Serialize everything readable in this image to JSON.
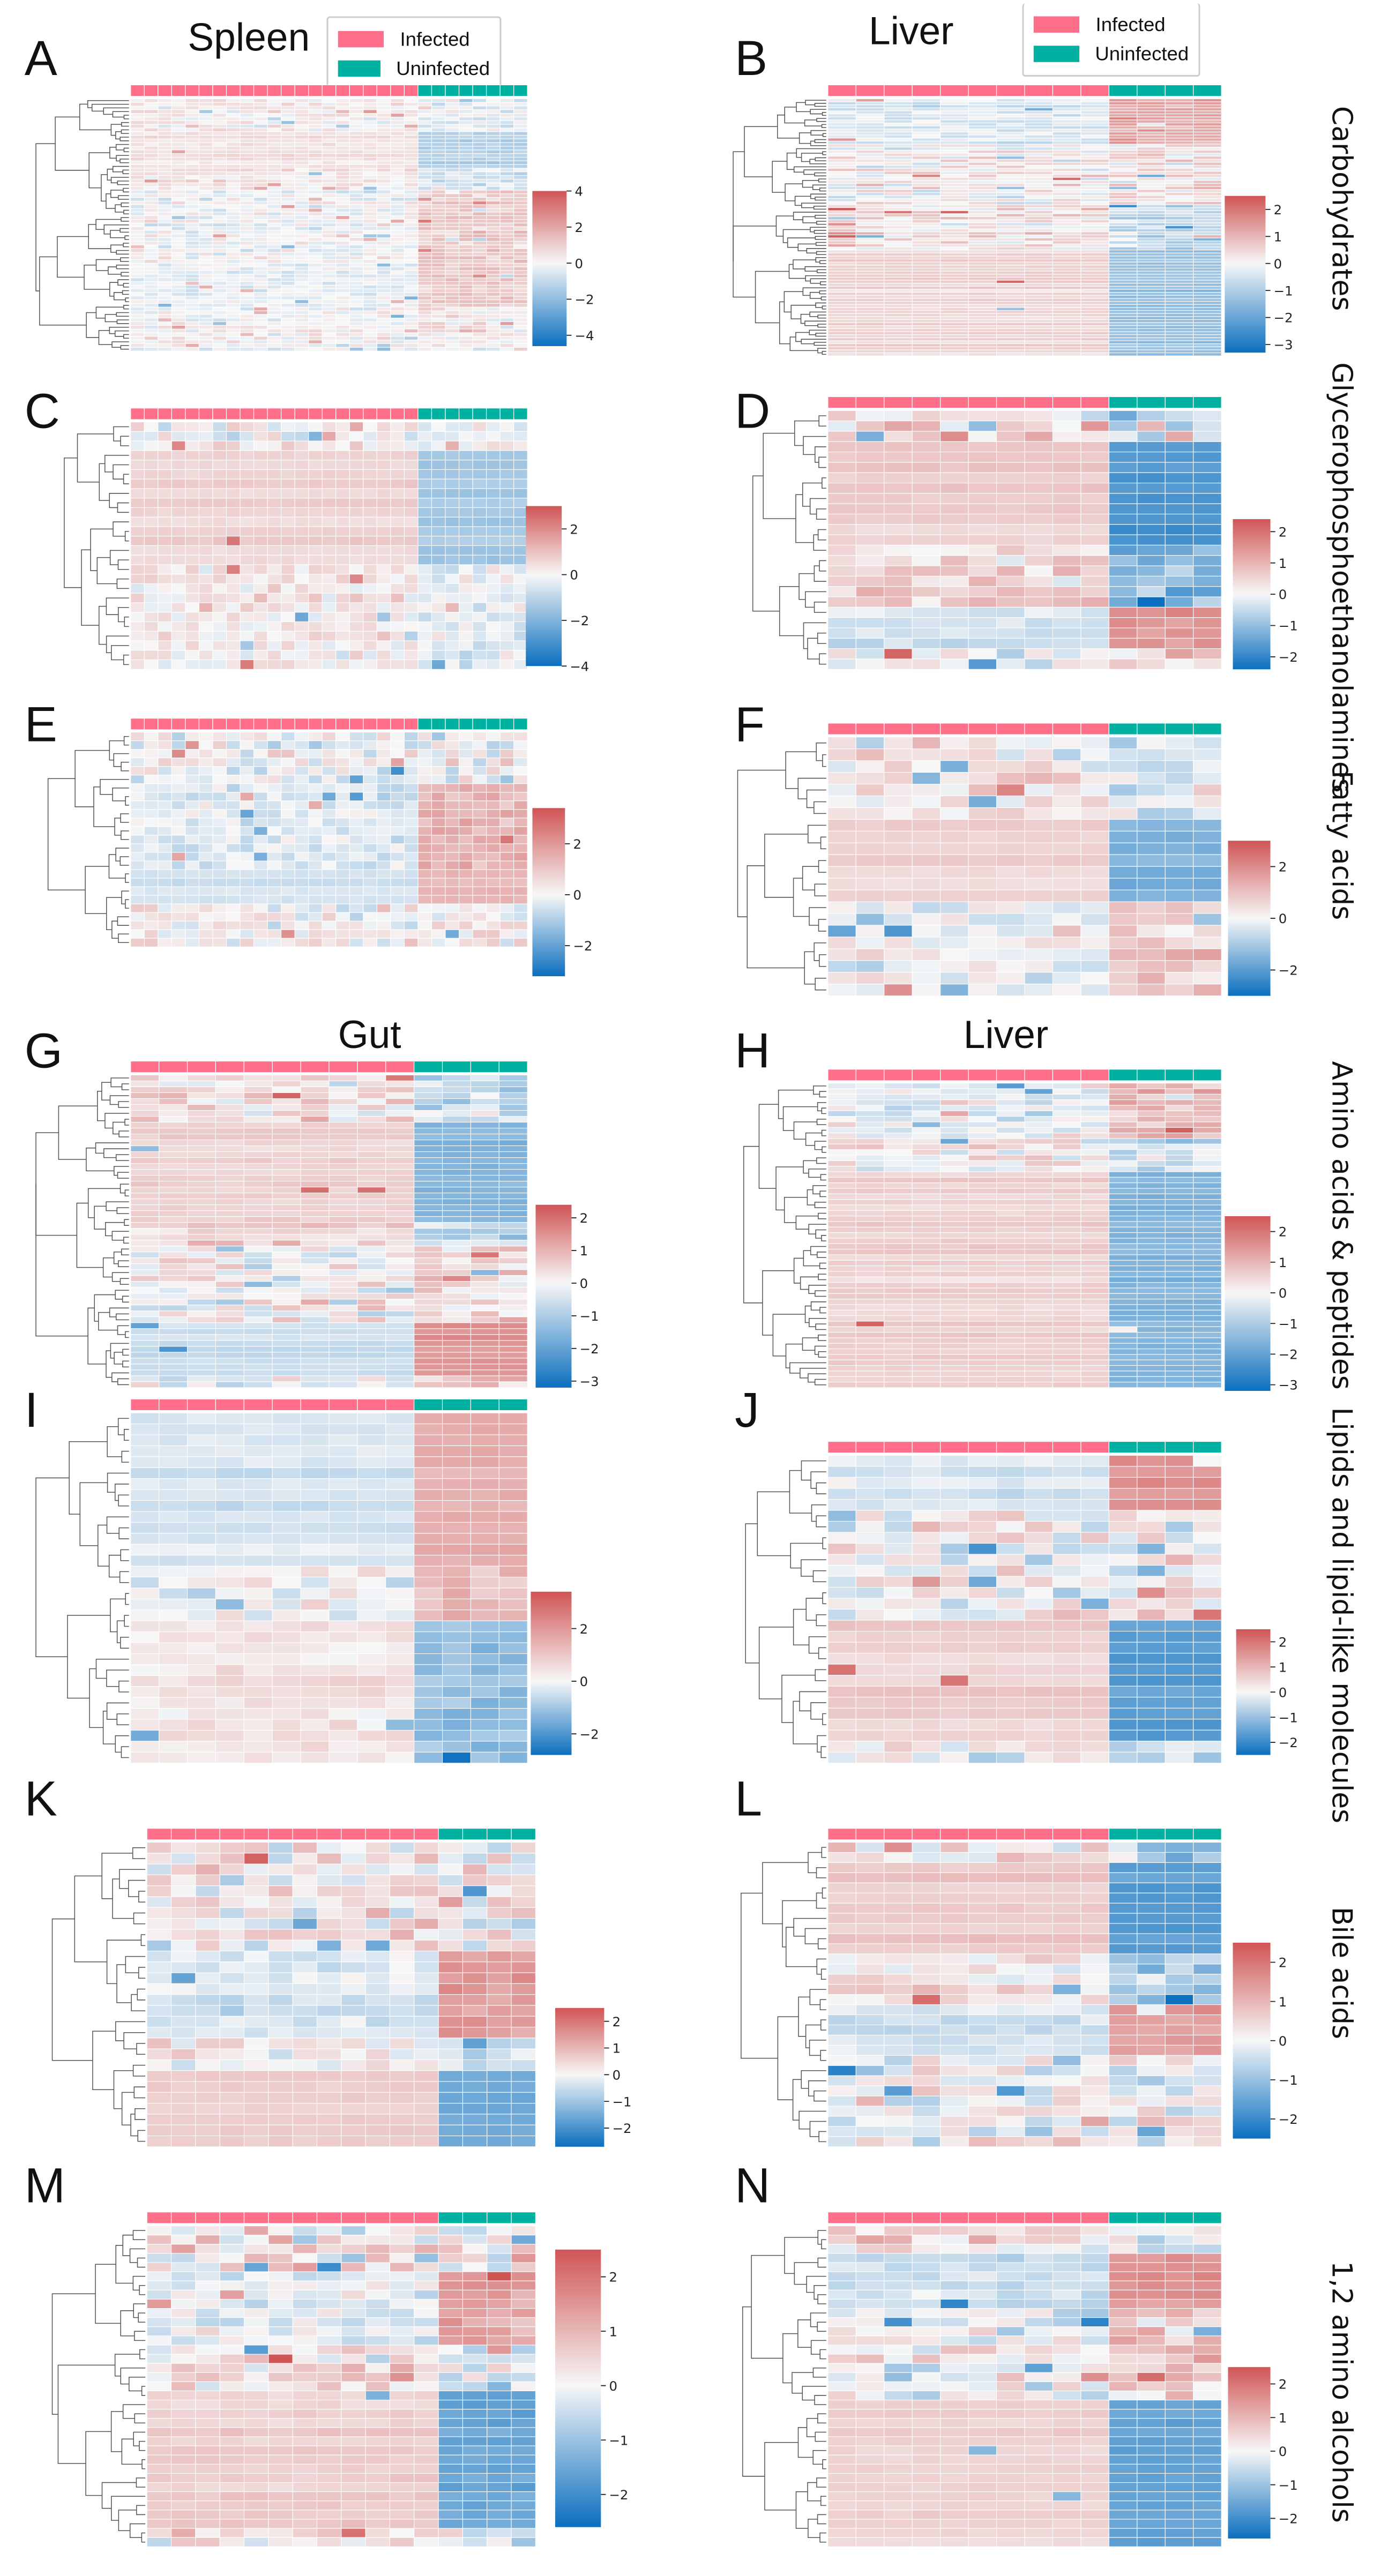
{
  "legend": {
    "infected": "Infected",
    "uninfected": "Uninfected",
    "infected_color": "#ff6f8a",
    "uninfected_color": "#00b0a0"
  },
  "titles": {
    "spleen": "Spleen",
    "liver_top": "Liver",
    "gut": "Gut",
    "liver_mid": "Liver"
  },
  "side_labels": [
    "Carbohydrates",
    "Glycerophosphoethanolamines",
    "Fatty acids",
    "Amino acids & peptides",
    "Lipids and lipid-like molecules",
    "Bile acids",
    "1,2 amino alcohols"
  ],
  "colormap": {
    "low": "#0b6fbf",
    "mid": "#f7f7f7",
    "high": "#d05555"
  },
  "chart_data": [
    {
      "panel": "A",
      "type": "heatmap",
      "tissue": "Spleen",
      "category": "Carbohydrates",
      "n_infected": 21,
      "n_uninfected": 8,
      "vmin": -4.6,
      "vmax": 4,
      "ticks": [
        4,
        2,
        0,
        -2,
        -4
      ],
      "row_blocks": [
        {
          "rows": 9,
          "infected": 0.2,
          "uninfected": -0.2,
          "spread": 0.8
        },
        {
          "rows": 10,
          "infected": 0.45,
          "uninfected": -1.1,
          "spread": 0.3
        },
        {
          "rows": 6,
          "infected": 0.3,
          "uninfected": -0.6,
          "spread": 0.7
        },
        {
          "rows": 20,
          "infected": -0.1,
          "uninfected": 0.9,
          "spread": 0.8
        },
        {
          "rows": 12,
          "infected": -0.2,
          "uninfected": 1.0,
          "spread": 0.6
        },
        {
          "rows": 12,
          "infected": 0.0,
          "uninfected": 0.3,
          "spread": 0.9
        }
      ]
    },
    {
      "panel": "B",
      "type": "heatmap",
      "tissue": "Liver",
      "category": "Carbohydrates",
      "n_infected": 10,
      "n_uninfected": 4,
      "vmin": -3.3,
      "vmax": 2.5,
      "ticks": [
        2,
        1,
        0,
        -1,
        -2,
        -3
      ],
      "row_blocks": [
        {
          "rows": 15,
          "infected": -0.3,
          "uninfected": 1.1,
          "spread": 0.5
        },
        {
          "rows": 20,
          "infected": 0.1,
          "uninfected": 0.3,
          "spread": 0.9
        },
        {
          "rows": 15,
          "infected": 0.3,
          "uninfected": -0.6,
          "spread": 0.8
        },
        {
          "rows": 35,
          "infected": 0.45,
          "uninfected": -1.2,
          "spread": 0.1
        }
      ]
    },
    {
      "panel": "C",
      "type": "heatmap",
      "tissue": "Spleen",
      "category": "Glycerophosphoethanolamines",
      "n_infected": 21,
      "n_uninfected": 8,
      "vmin": -4,
      "vmax": 3,
      "ticks": [
        2,
        0,
        -2,
        -4
      ],
      "row_blocks": [
        {
          "rows": 3,
          "infected": 0.1,
          "uninfected": -0.2,
          "spread": 1.0
        },
        {
          "rows": 12,
          "infected": 0.6,
          "uninfected": -1.2,
          "spread": 0.1
        },
        {
          "rows": 11,
          "infected": 0.2,
          "uninfected": -0.3,
          "spread": 0.8
        }
      ]
    },
    {
      "panel": "D",
      "type": "heatmap",
      "tissue": "Liver",
      "category": "Glycerophosphoethanolamines",
      "n_infected": 10,
      "n_uninfected": 4,
      "vmin": -2.4,
      "vmax": 2.4,
      "ticks": [
        2,
        1,
        0,
        -1,
        -2
      ],
      "row_blocks": [
        {
          "rows": 3,
          "infected": 0.4,
          "uninfected": -0.6,
          "spread": 1.0
        },
        {
          "rows": 10,
          "infected": 0.6,
          "uninfected": -1.6,
          "spread": 0.1
        },
        {
          "rows": 6,
          "infected": 0.5,
          "uninfected": -1.0,
          "spread": 0.8
        },
        {
          "rows": 4,
          "infected": -0.4,
          "uninfected": 1.3,
          "spread": 0.3
        },
        {
          "rows": 2,
          "infected": 0.0,
          "uninfected": 0.5,
          "spread": 1.0
        }
      ]
    },
    {
      "panel": "E",
      "type": "heatmap",
      "tissue": "Spleen",
      "category": "Fatty acids",
      "n_infected": 21,
      "n_uninfected": 8,
      "vmin": -3.2,
      "vmax": 3.4,
      "ticks": [
        2,
        0,
        -2
      ],
      "row_blocks": [
        {
          "rows": 6,
          "infected": 0.0,
          "uninfected": 0.0,
          "spread": 1.1
        },
        {
          "rows": 10,
          "infected": -0.3,
          "uninfected": 1.3,
          "spread": 0.6
        },
        {
          "rows": 4,
          "infected": -0.4,
          "uninfected": 1.2,
          "spread": 0.1
        },
        {
          "rows": 5,
          "infected": 0.1,
          "uninfected": 0.1,
          "spread": 1.0
        }
      ]
    },
    {
      "panel": "F",
      "type": "heatmap",
      "tissue": "Liver",
      "category": "Fatty acids",
      "n_infected": 10,
      "n_uninfected": 4,
      "vmin": -3,
      "vmax": 3,
      "ticks": [
        2,
        0,
        -2
      ],
      "row_blocks": [
        {
          "rows": 7,
          "infected": 0.3,
          "uninfected": -0.3,
          "spread": 0.9
        },
        {
          "rows": 7,
          "infected": 0.6,
          "uninfected": -1.4,
          "spread": 0.1
        },
        {
          "rows": 8,
          "infected": -0.1,
          "uninfected": 0.7,
          "spread": 0.9
        }
      ]
    },
    {
      "panel": "G",
      "type": "heatmap",
      "tissue": "Gut",
      "category": "Amino acids & peptides",
      "n_infected": 10,
      "n_uninfected": 4,
      "vmin": -3.2,
      "vmax": 2.4,
      "ticks": [
        2,
        1,
        0,
        -1,
        -2,
        -3
      ],
      "row_blocks": [
        {
          "rows": 8,
          "infected": 0.2,
          "uninfected": -0.5,
          "spread": 0.9
        },
        {
          "rows": 17,
          "infected": 0.5,
          "uninfected": -1.4,
          "spread": 0.15
        },
        {
          "rows": 4,
          "infected": 0.5,
          "uninfected": -0.8,
          "spread": 0.6
        },
        {
          "rows": 13,
          "infected": 0.0,
          "uninfected": 0.4,
          "spread": 1.0
        },
        {
          "rows": 9,
          "infected": -0.5,
          "uninfected": 1.4,
          "spread": 0.1
        },
        {
          "rows": 2,
          "infected": -0.3,
          "uninfected": 0.8,
          "spread": 1.0
        }
      ]
    },
    {
      "panel": "H",
      "type": "heatmap",
      "tissue": "Liver",
      "category": "Amino acids & peptides",
      "n_infected": 10,
      "n_uninfected": 4,
      "vmin": -3.2,
      "vmax": 2.5,
      "ticks": [
        2,
        1,
        0,
        -1,
        -2,
        -3
      ],
      "row_blocks": [
        {
          "rows": 10,
          "infected": -0.2,
          "uninfected": 0.8,
          "spread": 0.8
        },
        {
          "rows": 6,
          "infected": 0.2,
          "uninfected": -0.4,
          "spread": 0.9
        },
        {
          "rows": 39,
          "infected": 0.45,
          "uninfected": -1.5,
          "spread": 0.1
        }
      ]
    },
    {
      "panel": "I",
      "type": "heatmap",
      "tissue": "Gut",
      "category": "Lipids and lipid-like molecules",
      "n_infected": 10,
      "n_uninfected": 4,
      "vmin": -2.8,
      "vmax": 3.4,
      "ticks": [
        2,
        0,
        -2
      ],
      "row_blocks": [
        {
          "rows": 14,
          "infected": -0.3,
          "uninfected": 1.4,
          "spread": 0.15
        },
        {
          "rows": 5,
          "infected": -0.1,
          "uninfected": 1.0,
          "spread": 0.8
        },
        {
          "rows": 13,
          "infected": 0.3,
          "uninfected": -1.1,
          "spread": 0.4
        }
      ]
    },
    {
      "panel": "J",
      "type": "heatmap",
      "tissue": "Liver",
      "category": "Lipids and lipid-like molecules",
      "n_infected": 10,
      "n_uninfected": 4,
      "vmin": -2.5,
      "vmax": 2.5,
      "ticks": [
        2,
        1,
        0,
        -1,
        -2
      ],
      "row_blocks": [
        {
          "rows": 5,
          "infected": -0.3,
          "uninfected": 1.4,
          "spread": 0.2
        },
        {
          "rows": 10,
          "infected": 0.1,
          "uninfected": 0.2,
          "spread": 1.1
        },
        {
          "rows": 11,
          "infected": 0.5,
          "uninfected": -1.6,
          "spread": 0.1
        },
        {
          "rows": 2,
          "infected": 0.2,
          "uninfected": -0.5,
          "spread": 0.9
        }
      ]
    },
    {
      "panel": "K",
      "type": "heatmap",
      "tissue": "Gut",
      "category": "Bile acids",
      "n_infected": 12,
      "n_uninfected": 4,
      "vmin": -2.7,
      "vmax": 2.5,
      "ticks": [
        2,
        1,
        0,
        -1,
        -2
      ],
      "row_blocks": [
        {
          "rows": 10,
          "infected": 0.2,
          "uninfected": 0.2,
          "spread": 1.1
        },
        {
          "rows": 8,
          "infected": -0.3,
          "uninfected": 1.3,
          "spread": 0.4
        },
        {
          "rows": 3,
          "infected": 0.2,
          "uninfected": -0.4,
          "spread": 0.8
        },
        {
          "rows": 7,
          "infected": 0.5,
          "uninfected": -1.5,
          "spread": 0.1
        }
      ]
    },
    {
      "panel": "L",
      "type": "heatmap",
      "tissue": "Liver",
      "category": "Bile acids",
      "n_infected": 10,
      "n_uninfected": 4,
      "vmin": -2.5,
      "vmax": 2.5,
      "ticks": [
        2,
        1,
        0,
        -1,
        -2
      ],
      "row_blocks": [
        {
          "rows": 2,
          "infected": 0.3,
          "uninfected": -1.0,
          "spread": 1.0
        },
        {
          "rows": 9,
          "infected": 0.6,
          "uninfected": -1.6,
          "spread": 0.1
        },
        {
          "rows": 5,
          "infected": 0.2,
          "uninfected": -0.8,
          "spread": 0.8
        },
        {
          "rows": 5,
          "infected": -0.3,
          "uninfected": 1.3,
          "spread": 0.3
        },
        {
          "rows": 9,
          "infected": 0.1,
          "uninfected": 0.1,
          "spread": 1.1
        }
      ]
    },
    {
      "panel": "M",
      "type": "heatmap",
      "tissue": "Gut",
      "category": "1,2 amino alcohols",
      "n_infected": 12,
      "n_uninfected": 4,
      "vmin": -2.6,
      "vmax": 2.5,
      "ticks": [
        2,
        1,
        0,
        -1,
        -2
      ],
      "row_blocks": [
        {
          "rows": 5,
          "infected": 0.1,
          "uninfected": 0.0,
          "spread": 1.1
        },
        {
          "rows": 8,
          "infected": -0.2,
          "uninfected": 1.2,
          "spread": 0.6
        },
        {
          "rows": 5,
          "infected": 0.2,
          "uninfected": -0.3,
          "spread": 1.0
        },
        {
          "rows": 15,
          "infected": 0.5,
          "uninfected": -1.5,
          "spread": 0.15
        },
        {
          "rows": 2,
          "infected": 0.2,
          "uninfected": -0.4,
          "spread": 0.9
        }
      ]
    },
    {
      "panel": "N",
      "type": "heatmap",
      "tissue": "Liver",
      "category": "1,2 amino alcohols",
      "n_infected": 10,
      "n_uninfected": 4,
      "vmin": -2.6,
      "vmax": 2.5,
      "ticks": [
        2,
        1,
        0,
        -1,
        -2
      ],
      "row_blocks": [
        {
          "rows": 3,
          "infected": 0.3,
          "uninfected": -0.2,
          "spread": 0.9
        },
        {
          "rows": 6,
          "infected": -0.4,
          "uninfected": 1.5,
          "spread": 0.3
        },
        {
          "rows": 10,
          "infected": 0.0,
          "uninfected": 0.5,
          "spread": 1.1
        },
        {
          "rows": 16,
          "infected": 0.5,
          "uninfected": -1.5,
          "spread": 0.1
        }
      ]
    }
  ]
}
